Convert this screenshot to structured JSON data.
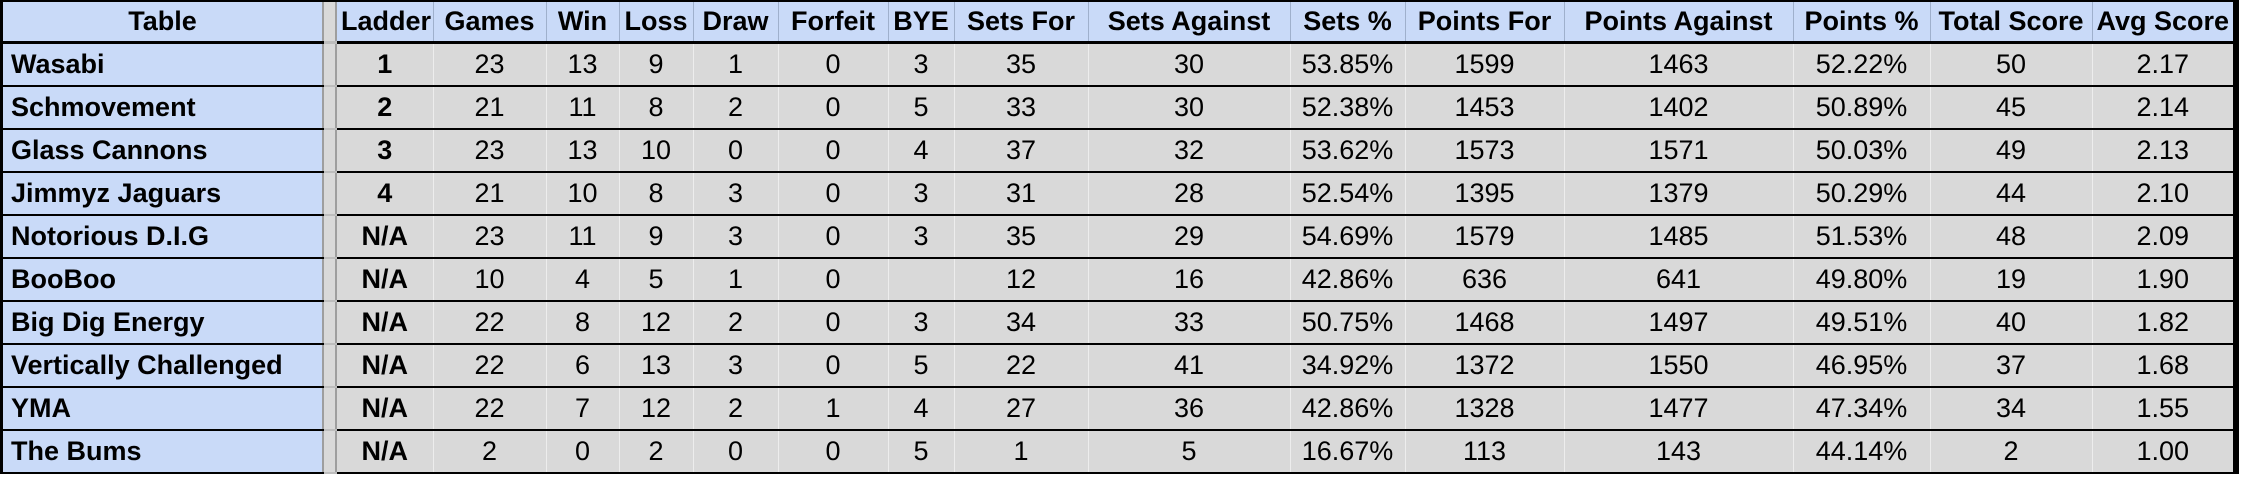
{
  "colors": {
    "header_bg": "#c9daf8",
    "team_column_bg": "#c9daf8",
    "cell_bg": "#d9d9d9",
    "row_border": "#000000"
  },
  "table": {
    "columns": [
      {
        "key": "table",
        "label": "Table"
      },
      {
        "key": "ladder",
        "label": "Ladder"
      },
      {
        "key": "games",
        "label": "Games"
      },
      {
        "key": "win",
        "label": "Win"
      },
      {
        "key": "loss",
        "label": "Loss"
      },
      {
        "key": "draw",
        "label": "Draw"
      },
      {
        "key": "forfeit",
        "label": "Forfeit"
      },
      {
        "key": "bye",
        "label": "BYE"
      },
      {
        "key": "sets_for",
        "label": "Sets For"
      },
      {
        "key": "sets_against",
        "label": "Sets Against"
      },
      {
        "key": "sets_pct",
        "label": "Sets %"
      },
      {
        "key": "points_for",
        "label": "Points For"
      },
      {
        "key": "points_against",
        "label": "Points Against"
      },
      {
        "key": "points_pct",
        "label": "Points %"
      },
      {
        "key": "total_score",
        "label": "Total Score"
      },
      {
        "key": "avg_score",
        "label": "Avg Score"
      }
    ],
    "rows": [
      [
        "Wasabi",
        "1",
        "23",
        "13",
        "9",
        "1",
        "0",
        "3",
        "35",
        "30",
        "53.85%",
        "1599",
        "1463",
        "52.22%",
        "50",
        "2.17"
      ],
      [
        "Schmovement",
        "2",
        "21",
        "11",
        "8",
        "2",
        "0",
        "5",
        "33",
        "30",
        "52.38%",
        "1453",
        "1402",
        "50.89%",
        "45",
        "2.14"
      ],
      [
        "Glass Cannons",
        "3",
        "23",
        "13",
        "10",
        "0",
        "0",
        "4",
        "37",
        "32",
        "53.62%",
        "1573",
        "1571",
        "50.03%",
        "49",
        "2.13"
      ],
      [
        "Jimmyz Jaguars",
        "4",
        "21",
        "10",
        "8",
        "3",
        "0",
        "3",
        "31",
        "28",
        "52.54%",
        "1395",
        "1379",
        "50.29%",
        "44",
        "2.10"
      ],
      [
        "Notorious D.I.G",
        "N/A",
        "23",
        "11",
        "9",
        "3",
        "0",
        "3",
        "35",
        "29",
        "54.69%",
        "1579",
        "1485",
        "51.53%",
        "48",
        "2.09"
      ],
      [
        "BooBoo",
        "N/A",
        "10",
        "4",
        "5",
        "1",
        "0",
        "",
        "12",
        "16",
        "42.86%",
        "636",
        "641",
        "49.80%",
        "19",
        "1.90"
      ],
      [
        "Big Dig Energy",
        "N/A",
        "22",
        "8",
        "12",
        "2",
        "0",
        "3",
        "34",
        "33",
        "50.75%",
        "1468",
        "1497",
        "49.51%",
        "40",
        "1.82"
      ],
      [
        "Vertically Challenged",
        "N/A",
        "22",
        "6",
        "13",
        "3",
        "0",
        "5",
        "22",
        "41",
        "34.92%",
        "1372",
        "1550",
        "46.95%",
        "37",
        "1.68"
      ],
      [
        "YMA",
        "N/A",
        "22",
        "7",
        "12",
        "2",
        "1",
        "4",
        "27",
        "36",
        "42.86%",
        "1328",
        "1477",
        "47.34%",
        "34",
        "1.55"
      ],
      [
        "The Bums",
        "N/A",
        "2",
        "0",
        "2",
        "0",
        "0",
        "5",
        "1",
        "5",
        "16.67%",
        "113",
        "143",
        "44.14%",
        "2",
        "1.00"
      ]
    ]
  }
}
